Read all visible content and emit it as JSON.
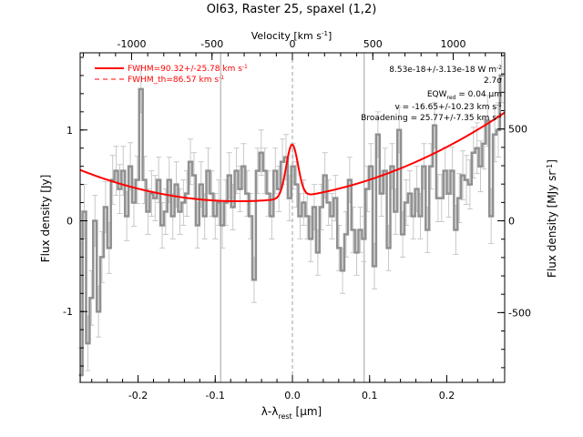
{
  "chart_data": {
    "type": "line",
    "title": "OI63, Raster 25, spaxel (1,2)",
    "xlabel": "λ-λ",
    "xlabel_sub": "rest",
    "xlabel_unit": "[μm]",
    "ylabel": "Flux density [Jy]",
    "top_xlabel": "Velocity [km s",
    "top_xlabel_sup": "-1",
    "top_xlabel_end": "]",
    "right_ylabel": "Flux density [MJy sr",
    "right_ylabel_sup": "-1",
    "right_ylabel_end": "]",
    "xlim": [
      -0.275,
      0.275
    ],
    "ylim": [
      -1.78,
      1.85
    ],
    "top_xlim": [
      -1320,
      1320
    ],
    "right_ylim": [
      -880,
      915
    ],
    "x_ticks": [
      {
        "v": -0.2,
        "label": "-0.2"
      },
      {
        "v": -0.1,
        "label": "-0.1"
      },
      {
        "v": 0.0,
        "label": "0.0"
      },
      {
        "v": 0.1,
        "label": "0.1"
      },
      {
        "v": 0.2,
        "label": "0.2"
      }
    ],
    "y_ticks": [
      {
        "v": -1,
        "label": "-1"
      },
      {
        "v": 0,
        "label": "0"
      },
      {
        "v": 1,
        "label": "1"
      }
    ],
    "top_ticks": [
      {
        "v": -1000,
        "label": "-1000"
      },
      {
        "v": -500,
        "label": "-500"
      },
      {
        "v": 0,
        "label": "0"
      },
      {
        "v": 500,
        "label": "500"
      },
      {
        "v": 1000,
        "label": "1000"
      }
    ],
    "right_ticks": [
      {
        "v": -500,
        "label": "-500"
      },
      {
        "v": 0,
        "label": "0"
      },
      {
        "v": 500,
        "label": "500"
      }
    ],
    "vlines": [
      -0.093,
      0.0,
      0.093
    ],
    "zero_line_style": "dashed",
    "legend": [
      {
        "label": "FWHM=90.32+/-25.78 km s",
        "sup": "-1",
        "style": "solid",
        "color": "#ff0000"
      },
      {
        "label": "FWHM_th=86.57 km s",
        "sup": "-1",
        "style": "dashed",
        "color": "#ff0000"
      }
    ],
    "annotations": [
      {
        "text": "8.53e-18+/-3.13e-18 W m",
        "sup": "-2"
      },
      {
        "text": "2.7σ"
      },
      {
        "text": "EQW",
        "sub": "red",
        "tail": " = 0.04 μm"
      },
      {
        "text": "v = -16.65+/-10.23 km s",
        "sup": "-1"
      },
      {
        "text": "Broadening = 25.77+/-7.35 km s",
        "sup": "-1"
      }
    ],
    "colors": {
      "data": "#909090",
      "fit": "#ff0000",
      "axes": "#000000"
    },
    "series": [
      {
        "name": "data",
        "style": "steps",
        "x": [
          -0.2742,
          -0.2696,
          -0.265,
          -0.2604,
          -0.2558,
          -0.2512,
          -0.2467,
          -0.2421,
          -0.2375,
          -0.2329,
          -0.2283,
          -0.2237,
          -0.2192,
          -0.2146,
          -0.21,
          -0.2054,
          -0.2008,
          -0.1962,
          -0.1917,
          -0.1871,
          -0.1825,
          -0.1779,
          -0.1733,
          -0.1687,
          -0.1642,
          -0.1596,
          -0.155,
          -0.1504,
          -0.1458,
          -0.1412,
          -0.1367,
          -0.1321,
          -0.1275,
          -0.1229,
          -0.1183,
          -0.1137,
          -0.1092,
          -0.1046,
          -0.1,
          -0.0954,
          -0.0908,
          -0.0862,
          -0.0817,
          -0.0771,
          -0.0725,
          -0.0679,
          -0.0633,
          -0.0587,
          -0.0542,
          -0.0496,
          -0.045,
          -0.0404,
          -0.0358,
          -0.0312,
          -0.0267,
          -0.0221,
          -0.0175,
          -0.0129,
          -0.0083,
          -0.0037,
          0.0008,
          0.0054,
          0.01,
          0.0146,
          0.0192,
          0.0238,
          0.0283,
          0.0329,
          0.0375,
          0.0421,
          0.0467,
          0.0512,
          0.0558,
          0.0604,
          0.065,
          0.0696,
          0.0742,
          0.0787,
          0.0833,
          0.0879,
          0.0925,
          0.0971,
          0.1017,
          0.1062,
          0.1108,
          0.1154,
          0.12,
          0.1246,
          0.1292,
          0.1337,
          0.1383,
          0.1429,
          0.1475,
          0.1521,
          0.1567,
          0.1612,
          0.1658,
          0.1704,
          0.175,
          0.1796,
          0.1842,
          0.1887,
          0.1933,
          0.1979,
          0.2025,
          0.2071,
          0.2117,
          0.2162,
          0.2208,
          0.2254,
          0.23,
          0.2346,
          0.2392,
          0.2437,
          0.2483,
          0.2529,
          0.2575,
          0.2621,
          0.2667,
          0.2712
        ],
        "y": [
          -1.7,
          0.1,
          -1.35,
          -0.85,
          0.0,
          -1.0,
          -0.4,
          0.15,
          -0.3,
          0.45,
          0.55,
          0.35,
          0.55,
          0.05,
          0.6,
          0.2,
          0.45,
          1.45,
          0.45,
          0.1,
          0.3,
          0.25,
          0.45,
          -0.05,
          0.1,
          0.45,
          0.05,
          0.4,
          0.1,
          0.2,
          0.3,
          0.65,
          0.5,
          -0.05,
          0.4,
          0.05,
          0.55,
          0.3,
          0.05,
          0.2,
          -0.05,
          0.2,
          0.5,
          0.15,
          0.55,
          0.35,
          0.6,
          0.3,
          0.05,
          -0.65,
          0.55,
          0.75,
          0.55,
          0.3,
          0.05,
          0.55,
          0.35,
          0.65,
          0.7,
          0.25,
          0.6,
          0.4,
          0.05,
          0.2,
          0.05,
          -0.2,
          0.15,
          -0.35,
          0.15,
          0.5,
          0.2,
          0.05,
          0.25,
          -0.3,
          -0.55,
          -0.15,
          0.45,
          -0.1,
          -0.35,
          -0.1,
          -0.2,
          0.35,
          0.6,
          -0.5,
          0.95,
          0.3,
          0.55,
          -0.3,
          0.6,
          0.1,
          1.0,
          -0.15,
          0.2,
          0.3,
          0.05,
          0.35,
          0.05,
          0.6,
          -0.1,
          0.6,
          1.05,
          0.25,
          0.25,
          0.55,
          0.3,
          0.55,
          -0.1,
          0.25,
          0.5,
          0.45,
          0.4,
          0.75,
          0.8,
          0.6,
          0.85,
          1.1,
          0.05,
          0.95,
          1.0,
          1.6
        ],
        "err": [
          0.3,
          0.3,
          0.3,
          0.3,
          0.28,
          0.28,
          0.28,
          0.28,
          0.28,
          0.27,
          0.27,
          0.27,
          0.27,
          0.27,
          0.26,
          0.26,
          0.26,
          0.26,
          0.26,
          0.25,
          0.25,
          0.25,
          0.25,
          0.25,
          0.25,
          0.25,
          0.25,
          0.25,
          0.25,
          0.25,
          0.25,
          0.25,
          0.25,
          0.25,
          0.25,
          0.25,
          0.25,
          0.25,
          0.25,
          0.25,
          0.25,
          0.25,
          0.25,
          0.25,
          0.25,
          0.25,
          0.25,
          0.25,
          0.25,
          0.25,
          0.25,
          0.25,
          0.25,
          0.25,
          0.25,
          0.25,
          0.25,
          0.25,
          0.25,
          0.25,
          0.25,
          0.25,
          0.25,
          0.25,
          0.25,
          0.25,
          0.25,
          0.25,
          0.25,
          0.25,
          0.25,
          0.25,
          0.25,
          0.25,
          0.25,
          0.25,
          0.25,
          0.25,
          0.25,
          0.25,
          0.25,
          0.25,
          0.25,
          0.25,
          0.25,
          0.25,
          0.25,
          0.25,
          0.25,
          0.25,
          0.25,
          0.25,
          0.25,
          0.25,
          0.25,
          0.25,
          0.25,
          0.25,
          0.25,
          0.25,
          0.25,
          0.26,
          0.26,
          0.26,
          0.26,
          0.26,
          0.27,
          0.27,
          0.27,
          0.27,
          0.27,
          0.28,
          0.28,
          0.28,
          0.28,
          0.28,
          0.3,
          0.3,
          0.3,
          0.3
        ]
      },
      {
        "name": "fit",
        "style": "solid",
        "continuum": {
          "center": -0.07,
          "base": 0.215,
          "coef": 8.2
        },
        "gaussian": {
          "center": -0.0004,
          "amplitude": 0.585,
          "sigma": 0.0076
        }
      },
      {
        "name": "fit_th",
        "style": "dashed",
        "continuum": {
          "center": -0.07,
          "base": 0.215,
          "coef": 8.2
        },
        "gaussian": {
          "center": -0.0004,
          "amplitude": 0.585,
          "sigma": 0.0073
        }
      }
    ]
  }
}
